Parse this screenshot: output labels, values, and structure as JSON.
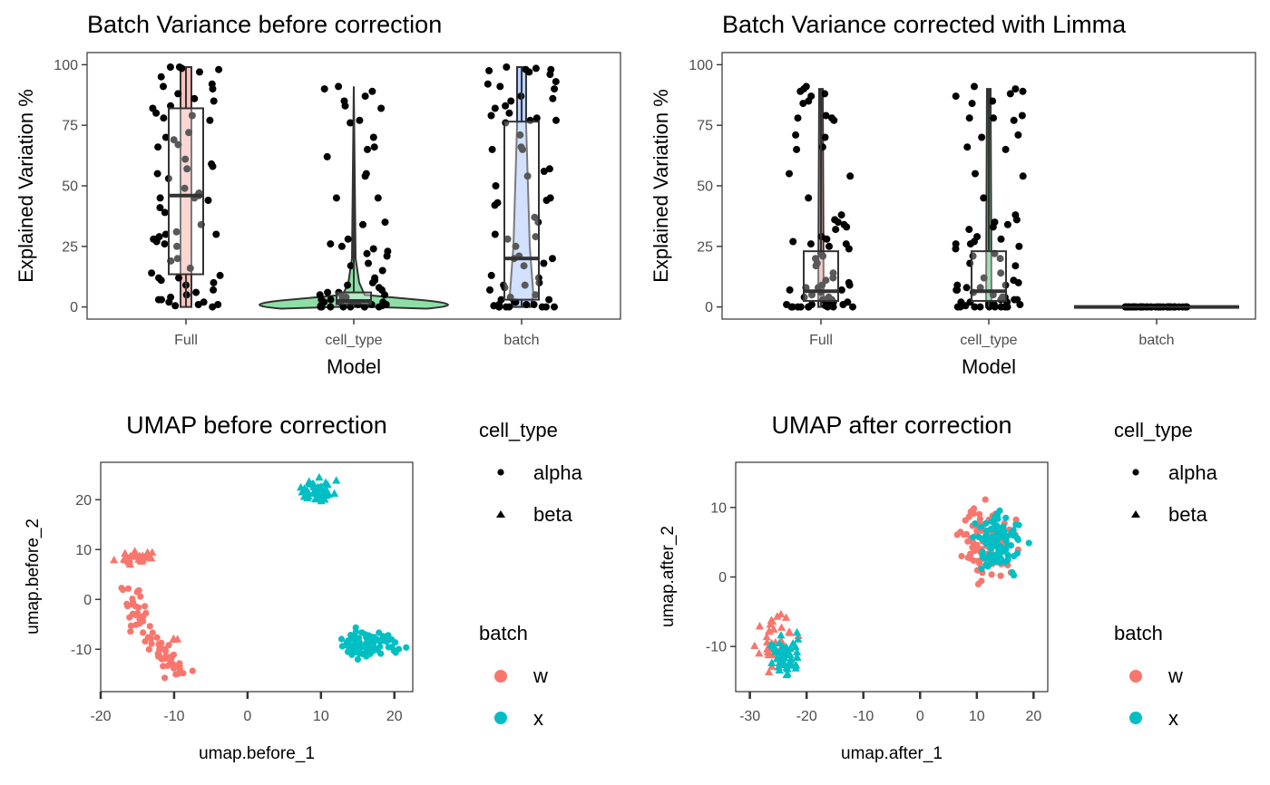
{
  "colors": {
    "batch_w": "#F8766D",
    "batch_x": "#00BFC4",
    "full_fill": "#F8766D",
    "cell_type_fill": "#00BA38",
    "batch_fill": "#619CFF",
    "points": "#000000",
    "box_line": "#333333"
  },
  "chart_data": [
    {
      "id": "variance-before",
      "type": "violin-box-jitter",
      "title": "Batch Variance before correction",
      "xlabel": "Model",
      "ylabel": "Explained Variation %",
      "ylim": [
        -5,
        105
      ],
      "yticks": [
        0,
        25,
        50,
        75,
        100
      ],
      "categories": [
        "Full",
        "cell_type",
        "batch"
      ],
      "boxes": [
        {
          "category": "Full",
          "q1": 13.5,
          "median": 46,
          "q3": 82,
          "min": 0,
          "max": 99,
          "violin": "narrow-uniform"
        },
        {
          "category": "cell_type",
          "q1": 1.2,
          "median": 2.5,
          "q3": 6,
          "min": 0,
          "max": 91,
          "violin": "wide-at-zero"
        },
        {
          "category": "batch",
          "q1": 3,
          "median": 20,
          "q3": 76.5,
          "min": 0,
          "max": 99,
          "violin": "tapered"
        }
      ],
      "points": [
        {
          "category": "Full",
          "values": [
            99,
            98.5,
            98,
            99,
            97,
            95,
            92,
            91,
            90,
            88,
            86,
            85,
            83,
            82,
            80,
            79,
            78,
            77,
            72,
            70,
            69,
            67,
            66,
            61,
            59,
            58,
            57,
            55,
            53,
            49,
            47,
            46,
            46,
            45,
            45,
            44,
            41,
            39,
            34,
            31,
            30,
            30,
            29,
            28,
            28,
            27,
            26,
            25,
            20,
            19,
            16,
            14,
            13,
            12,
            12,
            11,
            10,
            9,
            7,
            6,
            5,
            4,
            3,
            3,
            2,
            2,
            1,
            1,
            0.5,
            0
          ]
        },
        {
          "category": "cell_type",
          "values": [
            91,
            90,
            89,
            87,
            85,
            83,
            82,
            77,
            76,
            70,
            66,
            65,
            62,
            55,
            54,
            45,
            45,
            35,
            34,
            28,
            26,
            25,
            24,
            23,
            22,
            21,
            18,
            17,
            15,
            12,
            11,
            10,
            9,
            8,
            7,
            6,
            6,
            5,
            5,
            4,
            4,
            3,
            3,
            2,
            2,
            2,
            1,
            1,
            1,
            1,
            0.5,
            0.5,
            0,
            0,
            0,
            0,
            0,
            0,
            0,
            0
          ]
        },
        {
          "category": "batch",
          "values": [
            99,
            98.5,
            98,
            98,
            97.5,
            97,
            96,
            93,
            92,
            91,
            90,
            87,
            86,
            85,
            83,
            82,
            80,
            79,
            78,
            77,
            77,
            76,
            71,
            66,
            65,
            65,
            57,
            56,
            54,
            50,
            45,
            44,
            43,
            42,
            37,
            35,
            30,
            29,
            28,
            25,
            21,
            20,
            20,
            18,
            17,
            13,
            12,
            10,
            9,
            9,
            8,
            7,
            5,
            4,
            3,
            3,
            2,
            2,
            1,
            1,
            1,
            0.5,
            0.5,
            0,
            0,
            0,
            0,
            0,
            0,
            0
          ]
        }
      ]
    },
    {
      "id": "variance-after",
      "type": "violin-box-jitter",
      "title": "Batch Variance corrected with Limma",
      "xlabel": "Model",
      "ylabel": "Explained Variation %",
      "ylim": [
        -5,
        105
      ],
      "yticks": [
        0,
        25,
        50,
        75,
        100
      ],
      "categories": [
        "Full",
        "cell_type",
        "batch"
      ],
      "boxes": [
        {
          "category": "Full",
          "q1": 2.5,
          "median": 6.5,
          "q3": 23,
          "min": 0,
          "max": 90,
          "violin": "thin"
        },
        {
          "category": "cell_type",
          "q1": 2.5,
          "median": 6.5,
          "q3": 23,
          "min": 0,
          "max": 90,
          "violin": "thin"
        },
        {
          "category": "batch",
          "q1": 0,
          "median": 0,
          "q3": 0,
          "min": 0,
          "max": 0,
          "violin": "flat"
        }
      ],
      "points": [
        {
          "category": "Full",
          "values": [
            91,
            90,
            89,
            88,
            87,
            85,
            84,
            79,
            78,
            78,
            77,
            71,
            70,
            66,
            65,
            55,
            54,
            45,
            38,
            36,
            35,
            34,
            33,
            32,
            29,
            28,
            27,
            26,
            26,
            25,
            24,
            22,
            21,
            20,
            18,
            17,
            14,
            12,
            11,
            10,
            9,
            9,
            8,
            8,
            7,
            7,
            6,
            5,
            4,
            4,
            3,
            3,
            3,
            2,
            2,
            2,
            1,
            1,
            1,
            0.5,
            0.5,
            0,
            0,
            0,
            0,
            0,
            0,
            0,
            0,
            0
          ]
        },
        {
          "category": "cell_type",
          "values": [
            91,
            90,
            89,
            88,
            87,
            85,
            84,
            79,
            78,
            78,
            77,
            71,
            70,
            66,
            65,
            55,
            54,
            45,
            38,
            36,
            35,
            34,
            33,
            32,
            29,
            28,
            27,
            26,
            26,
            25,
            24,
            22,
            21,
            20,
            18,
            17,
            14,
            12,
            11,
            10,
            9,
            9,
            8,
            8,
            7,
            7,
            6,
            5,
            4,
            4,
            3,
            3,
            3,
            2,
            2,
            2,
            1,
            1,
            1,
            0.5,
            0.5,
            0,
            0,
            0,
            0,
            0,
            0,
            0,
            0,
            0
          ]
        },
        {
          "category": "batch",
          "values": [
            0,
            0,
            0,
            0,
            0,
            0,
            0,
            0,
            0,
            0,
            0,
            0,
            0,
            0,
            0,
            0,
            0,
            0,
            0,
            0,
            0,
            0,
            0,
            0,
            0,
            0,
            0,
            0,
            0,
            0,
            0,
            0,
            0,
            0,
            0,
            0,
            0,
            0,
            0,
            0
          ]
        }
      ]
    },
    {
      "id": "umap-before",
      "type": "scatter",
      "title": "UMAP before correction",
      "xlabel": "umap.before_1",
      "ylabel": "umap.before_2",
      "xlim": [
        -20,
        22.5
      ],
      "ylim": [
        -18.5,
        27.5
      ],
      "xticks": [
        -20,
        -10,
        0,
        10,
        20
      ],
      "yticks": [
        -10,
        0,
        10,
        20
      ],
      "clusters": [
        {
          "batch": "w",
          "cell_type": "beta",
          "n": 30,
          "center": [
            -15,
            8.5
          ],
          "spread": [
            2.3,
            1.6
          ],
          "seed": 11
        },
        {
          "batch": "w",
          "cell_type": "alpha",
          "n": 70,
          "shape_path": [
            [
              -16.5,
              2
            ],
            [
              -15,
              -4
            ],
            [
              -12,
              -10
            ],
            [
              -9,
              -15.5
            ]
          ],
          "spread": [
            1.4,
            1.6
          ],
          "seed": 13
        },
        {
          "batch": "w",
          "cell_type": "beta",
          "n": 3,
          "center": [
            -10,
            -8
          ],
          "spread": [
            0.6,
            0.6
          ],
          "seed": 29
        },
        {
          "batch": "x",
          "cell_type": "beta",
          "n": 50,
          "center": [
            9.5,
            21.5
          ],
          "spread": [
            1.8,
            2.0
          ],
          "seed": 17
        },
        {
          "batch": "x",
          "cell_type": "alpha",
          "n": 100,
          "center": [
            16.5,
            -9
          ],
          "spread": [
            3.4,
            2.3
          ],
          "seed": 19
        }
      ]
    },
    {
      "id": "umap-after",
      "type": "scatter",
      "title": "UMAP after correction",
      "xlabel": "umap.after_1",
      "ylabel": "umap.after_2",
      "xlim": [
        -32.5,
        22.5
      ],
      "ylim": [
        -16.5,
        16.5
      ],
      "xticks": [
        -30,
        -20,
        -10,
        0,
        10,
        20
      ],
      "yticks": [
        -10,
        0,
        10
      ],
      "clusters": [
        {
          "batch": "w",
          "cell_type": "beta",
          "n": 40,
          "center": [
            -25,
            -9.5
          ],
          "spread": [
            2.8,
            3.0
          ],
          "seed": 23
        },
        {
          "batch": "x",
          "cell_type": "beta",
          "n": 50,
          "center": [
            -24,
            -11.5
          ],
          "spread": [
            2.6,
            2.6
          ],
          "seed": 31
        },
        {
          "batch": "w",
          "cell_type": "alpha",
          "n": 100,
          "center": [
            12,
            5
          ],
          "spread": [
            4.2,
            4.6
          ],
          "seed": 37
        },
        {
          "batch": "x",
          "cell_type": "alpha",
          "n": 100,
          "center": [
            14,
            5
          ],
          "spread": [
            3.6,
            3.4
          ],
          "seed": 41
        }
      ]
    }
  ],
  "legend": {
    "shape_title": "cell_type",
    "shape_items": [
      {
        "label": "alpha",
        "shape": "circle"
      },
      {
        "label": "beta",
        "shape": "triangle"
      }
    ],
    "color_title": "batch",
    "color_items": [
      {
        "label": "w",
        "color": "#F8766D"
      },
      {
        "label": "x",
        "color": "#00BFC4"
      }
    ]
  }
}
